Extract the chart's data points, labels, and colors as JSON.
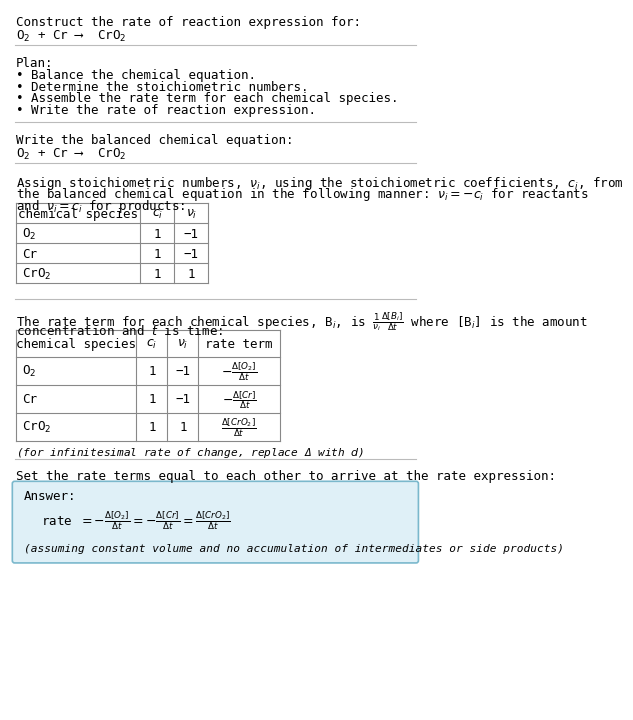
{
  "title_line1": "Construct the rate of reaction expression for:",
  "title_line2": "O$_2$ + Cr ⟶  CrO$_2$",
  "plan_header": "Plan:",
  "plan_items": [
    "• Balance the chemical equation.",
    "• Determine the stoichiometric numbers.",
    "• Assemble the rate term for each chemical species.",
    "• Write the rate of reaction expression."
  ],
  "balanced_eq_header": "Write the balanced chemical equation:",
  "balanced_eq": "O$_2$ + Cr ⟶  CrO$_2$",
  "stoich_line1": "Assign stoichiometric numbers, $\\nu_i$, using the stoichiometric coefficients, $c_i$, from",
  "stoich_line2": "the balanced chemical equation in the following manner: $\\nu_i = -c_i$ for reactants",
  "stoich_line3": "and $\\nu_i = c_i$ for products:",
  "table1_headers": [
    "chemical species",
    "$c_i$",
    "$\\nu_i$"
  ],
  "table1_rows": [
    [
      "O$_2$",
      "1",
      "−1"
    ],
    [
      "Cr",
      "1",
      "−1"
    ],
    [
      "CrO$_2$",
      "1",
      "1"
    ]
  ],
  "rate_line1": "The rate term for each chemical species, B$_i$, is $\\frac{1}{\\nu_i}\\frac{\\Delta[B_i]}{\\Delta t}$ where [B$_i$] is the amount",
  "rate_line2": "concentration and $t$ is time:",
  "table2_headers": [
    "chemical species",
    "$c_i$",
    "$\\nu_i$",
    "rate term"
  ],
  "table2_rows": [
    [
      "O$_2$",
      "1",
      "−1",
      "$-\\frac{\\Delta[O_2]}{\\Delta t}$"
    ],
    [
      "Cr",
      "1",
      "−1",
      "$-\\frac{\\Delta[Cr]}{\\Delta t}$"
    ],
    [
      "CrO$_2$",
      "1",
      "1",
      "$\\frac{\\Delta[CrO_2]}{\\Delta t}$"
    ]
  ],
  "infinitesimal_note": "(for infinitesimal rate of change, replace Δ with $d$)",
  "set_rate_header": "Set the rate terms equal to each other to arrive at the rate expression:",
  "answer_label": "Answer:",
  "answer_eq": "rate $= -\\frac{\\Delta[O_2]}{\\Delta t} = -\\frac{\\Delta[Cr]}{\\Delta t} = \\frac{\\Delta[CrO_2]}{\\Delta t}$",
  "answer_note": "(assuming constant volume and no accumulation of intermediates or side products)",
  "bg_color": "#ffffff",
  "answer_box_color": "#dff0f7",
  "text_color": "#000000",
  "table_line_color": "#888888",
  "answer_border_color": "#7ab8cc"
}
